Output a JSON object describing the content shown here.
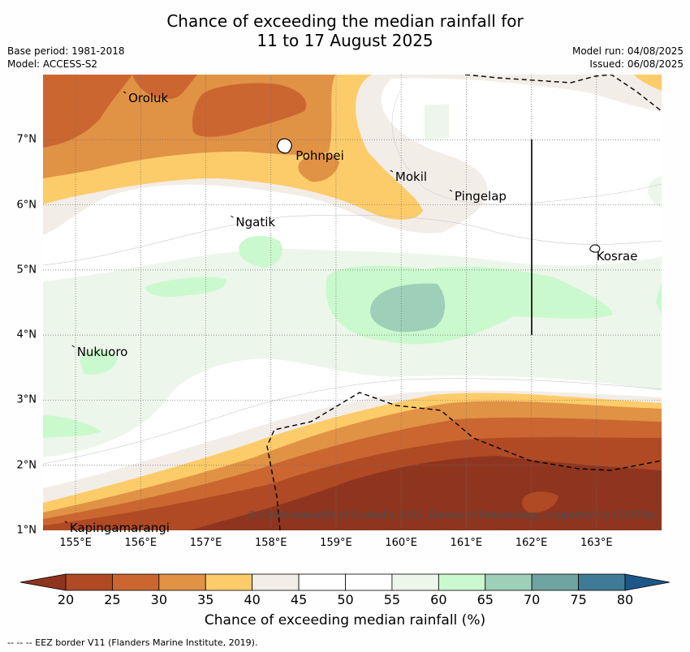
{
  "header": {
    "title_line1": "Chance of exceeding the median rainfall for",
    "title_line2": "11 to 17 August 2025",
    "base_period": "Base period: 1981-2018",
    "model": "Model: ACCESS-S2",
    "model_run": "Model run: 04/08/2025",
    "issued": "Issued: 06/08/2025"
  },
  "map": {
    "lat_range": [
      1,
      8
    ],
    "lon_range": [
      154.5,
      164
    ],
    "lat_labels": [
      "1°N",
      "2°N",
      "3°N",
      "4°N",
      "5°N",
      "6°N",
      "7°N"
    ],
    "lat_values": [
      1,
      2,
      3,
      4,
      5,
      6,
      7
    ],
    "lon_labels": [
      "155°E",
      "156°E",
      "157°E",
      "158°E",
      "159°E",
      "160°E",
      "161°E",
      "162°E",
      "163°E"
    ],
    "lon_values": [
      155,
      156,
      157,
      158,
      159,
      160,
      161,
      162,
      163
    ],
    "islands": [
      {
        "name": "Oroluk",
        "lon": 155.76,
        "lat": 7.64
      },
      {
        "name": "Pohnpei",
        "lon": 158.33,
        "lat": 6.75
      },
      {
        "name": "Mokil",
        "lon": 159.86,
        "lat": 6.43
      },
      {
        "name": "Pingelap",
        "lon": 160.77,
        "lat": 6.13
      },
      {
        "name": "Ngatik",
        "lon": 157.41,
        "lat": 5.73
      },
      {
        "name": "Kosrae",
        "lon": 162.95,
        "lat": 5.21
      },
      {
        "name": "Nukuoro",
        "lon": 154.97,
        "lat": 3.74
      },
      {
        "name": "Kapingamarangi",
        "lon": 154.86,
        "lat": 1.04
      }
    ],
    "copyright": "© Commonwealth of Australia 2025, Bureau of Meteorology, supported by COSPPac"
  },
  "colorbar": {
    "ticks": [
      "20",
      "25",
      "30",
      "35",
      "40",
      "45",
      "50",
      "55",
      "60",
      "65",
      "70",
      "75",
      "80"
    ],
    "colors": [
      "#b04a24",
      "#cb6631",
      "#e09245",
      "#fdcc6a",
      "#f3ede8",
      "#ffffff",
      "#ffffff",
      "#edf6ea",
      "#caf9cd",
      "#9dcfb9",
      "#6fa4a3",
      "#3f7b97"
    ],
    "under_color": "#8f351f",
    "over_color": "#1d578a",
    "label": "Chance of exceeding median rainfall (%)"
  },
  "footnote": "-- -- -- EEZ border V11 (Flanders Marine Institute, 2019)."
}
